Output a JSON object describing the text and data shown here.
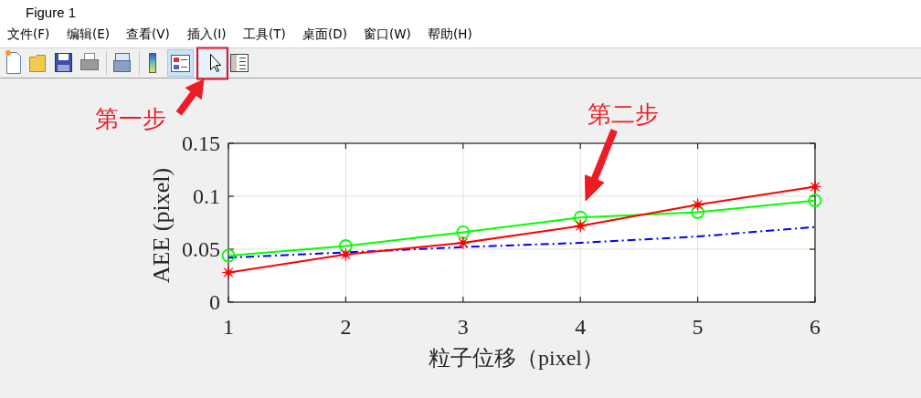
{
  "chart_data": {
    "type": "line",
    "title": "Figure 1",
    "xlabel": "粒子位移（pixel）",
    "ylabel": "AEE (pixel)",
    "annotations": [
      "文件(F)",
      "编辑(E)",
      "查看(V)",
      "插入(I)",
      "工具(T)",
      "桌面(D)",
      "窗口(W)",
      "帮助(H)",
      "第一步",
      "第二步"
    ],
    "x": [
      1,
      2,
      3,
      4,
      5,
      6
    ],
    "xlim": [
      1,
      6
    ],
    "xticks": [
      1,
      2,
      3,
      4,
      5,
      6
    ],
    "ylim": [
      0,
      0.15
    ],
    "yticks": [
      0,
      0.05,
      0.1,
      0.15
    ],
    "grid": true,
    "series": [
      {
        "color": "#0000ff",
        "line_style": "dashdot",
        "values": [
          0.042,
          0.047,
          0.052,
          0.056,
          0.062,
          0.071
        ]
      },
      {
        "color": "#00ff00",
        "marker": "circle",
        "values": [
          0.044,
          0.053,
          0.066,
          0.08,
          0.085,
          0.096
        ]
      },
      {
        "color": "#ff0000",
        "marker": "star",
        "values": [
          0.028,
          0.045,
          0.056,
          0.072,
          0.092,
          0.109
        ]
      }
    ]
  }
}
